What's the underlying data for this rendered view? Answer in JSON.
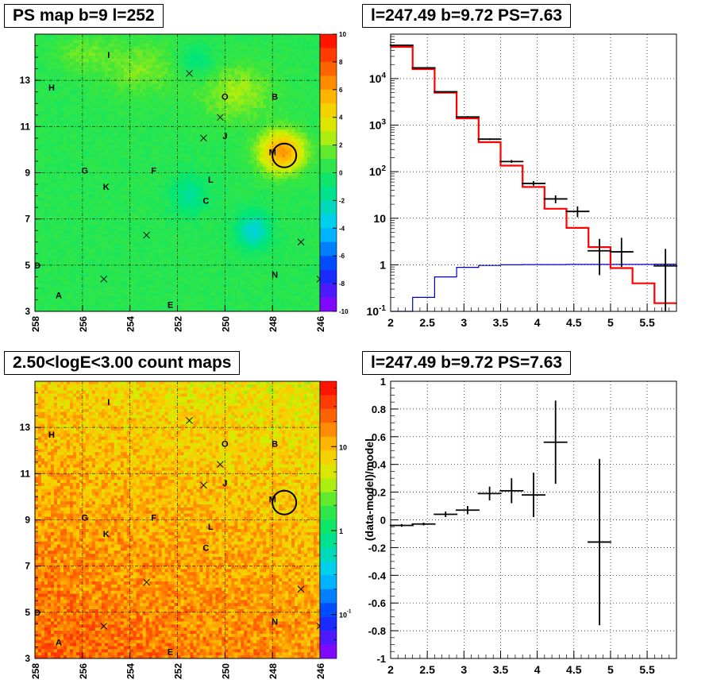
{
  "titles": {
    "tl": "PS map b=9 l=252",
    "tr": "l=247.49 b=9.72 PS=7.63",
    "bl": "2.50<logE<3.00 count maps",
    "br": "l=247.49 b=9.72 PS=7.63"
  },
  "colors": {
    "data": "#000000",
    "model": "#ff0000",
    "background_model": "#0000cc",
    "grid": "#000000"
  },
  "chart_data": [
    {
      "type": "heatmap",
      "id": "ps_map",
      "title": "PS map b=9 l=252",
      "x_ticks": [
        "258",
        "256",
        "254",
        "252",
        "250",
        "248",
        "246"
      ],
      "y_ticks": [
        "3",
        "5",
        "7",
        "9",
        "11",
        "13"
      ],
      "xlim": [
        258,
        246
      ],
      "ylim": [
        3,
        15
      ],
      "colorbar_ticks": [
        "10",
        "8",
        "6",
        "4",
        "2",
        "0",
        "-2",
        "-4",
        "-6",
        "-8",
        "-10"
      ],
      "zlim": [
        -10,
        10
      ],
      "sources": [
        {
          "label": "I",
          "l": 254.9,
          "b": 14.1
        },
        {
          "label": "H",
          "l": 257.3,
          "b": 12.7
        },
        {
          "label": "O",
          "l": 250.0,
          "b": 12.3
        },
        {
          "label": "B",
          "l": 247.9,
          "b": 12.3
        },
        {
          "label": "J",
          "l": 250.0,
          "b": 10.6
        },
        {
          "label": "M",
          "l": 248.0,
          "b": 9.9
        },
        {
          "label": "G",
          "l": 255.9,
          "b": 9.1
        },
        {
          "label": "F",
          "l": 253.0,
          "b": 9.1
        },
        {
          "label": "L",
          "l": 250.6,
          "b": 8.7
        },
        {
          "label": "K",
          "l": 255.0,
          "b": 8.4
        },
        {
          "label": "C",
          "l": 250.8,
          "b": 7.8
        },
        {
          "label": "D",
          "l": 257.9,
          "b": 5.0
        },
        {
          "label": "N",
          "l": 247.9,
          "b": 4.6
        },
        {
          "label": "A",
          "l": 257.0,
          "b": 3.7
        },
        {
          "label": "E",
          "l": 252.3,
          "b": 3.3
        }
      ],
      "crosses": [
        {
          "l": 251.5,
          "b": 13.3
        },
        {
          "l": 250.2,
          "b": 11.4
        },
        {
          "l": 250.9,
          "b": 10.5
        },
        {
          "l": 253.3,
          "b": 6.3
        },
        {
          "l": 246.8,
          "b": 6.0
        },
        {
          "l": 255.1,
          "b": 4.4
        },
        {
          "l": 246.0,
          "b": 4.4
        }
      ],
      "circle": {
        "l": 247.5,
        "b": 9.75
      }
    },
    {
      "type": "line",
      "id": "spectrum",
      "title": "l=247.49 b=9.72 PS=7.63",
      "x_ticks": [
        "2",
        "2.5",
        "3",
        "3.5",
        "4",
        "4.5",
        "5",
        "5.5"
      ],
      "xlim": [
        2,
        5.9
      ],
      "y_scale": "log",
      "y_ticks": [
        "10^-1",
        "1",
        "10",
        "10^2",
        "10^3",
        "10^4"
      ],
      "ylim": [
        0.1,
        90000
      ],
      "model_steps": {
        "edges": [
          2,
          2.3,
          2.6,
          2.9,
          3.2,
          3.5,
          3.8,
          4.1,
          4.4,
          4.7,
          5.0,
          5.3,
          5.6,
          5.9
        ],
        "values": [
          48000,
          16000,
          5000,
          1400,
          430,
          135,
          47,
          16,
          6.2,
          2.4,
          0.85,
          0.4,
          0.15
        ]
      },
      "background_steps": {
        "edges": [
          2,
          2.3,
          2.6,
          2.9,
          3.2,
          3.5,
          3.8,
          4.1,
          4.4,
          4.7,
          5.0,
          5.3,
          5.6,
          5.9
        ],
        "values": [
          0.1,
          0.2,
          0.55,
          0.88,
          0.97,
          1.0,
          1.01,
          1.01,
          1.02,
          1.02,
          1.02,
          1.02,
          1.03
        ]
      },
      "data_points": [
        {
          "x": 2.15,
          "y": 52000,
          "ylo": 52000,
          "yhi": 52000
        },
        {
          "x": 2.45,
          "y": 17000,
          "ylo": 17000,
          "yhi": 17000
        },
        {
          "x": 2.75,
          "y": 5200,
          "ylo": 5200,
          "yhi": 5200
        },
        {
          "x": 3.05,
          "y": 1500,
          "ylo": 1450,
          "yhi": 1560
        },
        {
          "x": 3.35,
          "y": 500,
          "ylo": 480,
          "yhi": 520
        },
        {
          "x": 3.65,
          "y": 165,
          "ylo": 155,
          "yhi": 178
        },
        {
          "x": 3.95,
          "y": 56,
          "ylo": 50,
          "yhi": 63
        },
        {
          "x": 4.25,
          "y": 26,
          "ylo": 21,
          "yhi": 31
        },
        {
          "x": 4.55,
          "y": 14,
          "ylo": 10.5,
          "yhi": 18
        },
        {
          "x": 4.85,
          "y": 2.0,
          "ylo": 0.6,
          "yhi": 3.6
        },
        {
          "x": 5.15,
          "y": 1.9,
          "ylo": 0.9,
          "yhi": 3.8
        },
        {
          "x": 5.75,
          "y": 0.95,
          "ylo": 0.1,
          "yhi": 2.2
        }
      ]
    },
    {
      "type": "heatmap",
      "id": "count_map",
      "title": "2.50<logE<3.00 count maps",
      "x_ticks": [
        "258",
        "256",
        "254",
        "252",
        "250",
        "248",
        "246"
      ],
      "y_ticks": [
        "3",
        "5",
        "7",
        "9",
        "11",
        "13"
      ],
      "xlim": [
        258,
        246
      ],
      "ylim": [
        3,
        15
      ],
      "colorbar_scale": "log",
      "colorbar_ticks": [
        "10",
        "1",
        "10^-1"
      ],
      "zlim": [
        0.03,
        60
      ]
    },
    {
      "type": "scatter",
      "id": "residuals",
      "title": "l=247.49 b=9.72 PS=7.63",
      "ylabel": "(data-model)/model",
      "x_ticks": [
        "2",
        "2.5",
        "3",
        "3.5",
        "4",
        "4.5",
        "5",
        "5.5"
      ],
      "xlim": [
        2,
        5.9
      ],
      "y_ticks": [
        "-1",
        "-0.8",
        "-0.6",
        "-0.4",
        "-0.2",
        "0",
        "0.2",
        "0.4",
        "0.6",
        "0.8",
        "1"
      ],
      "ylim": [
        -1,
        1
      ],
      "data_points": [
        {
          "x": 2.15,
          "y": -0.04,
          "err": 0.01
        },
        {
          "x": 2.45,
          "y": -0.03,
          "err": 0.01
        },
        {
          "x": 2.75,
          "y": 0.04,
          "err": 0.02
        },
        {
          "x": 3.05,
          "y": 0.07,
          "err": 0.03
        },
        {
          "x": 3.35,
          "y": 0.19,
          "err": 0.05
        },
        {
          "x": 3.65,
          "y": 0.21,
          "err": 0.09
        },
        {
          "x": 3.95,
          "y": 0.18,
          "err": 0.16
        },
        {
          "x": 4.25,
          "y": 0.56,
          "err": 0.3
        },
        {
          "x": 4.85,
          "y": -0.16,
          "err": 0.6
        }
      ]
    }
  ]
}
